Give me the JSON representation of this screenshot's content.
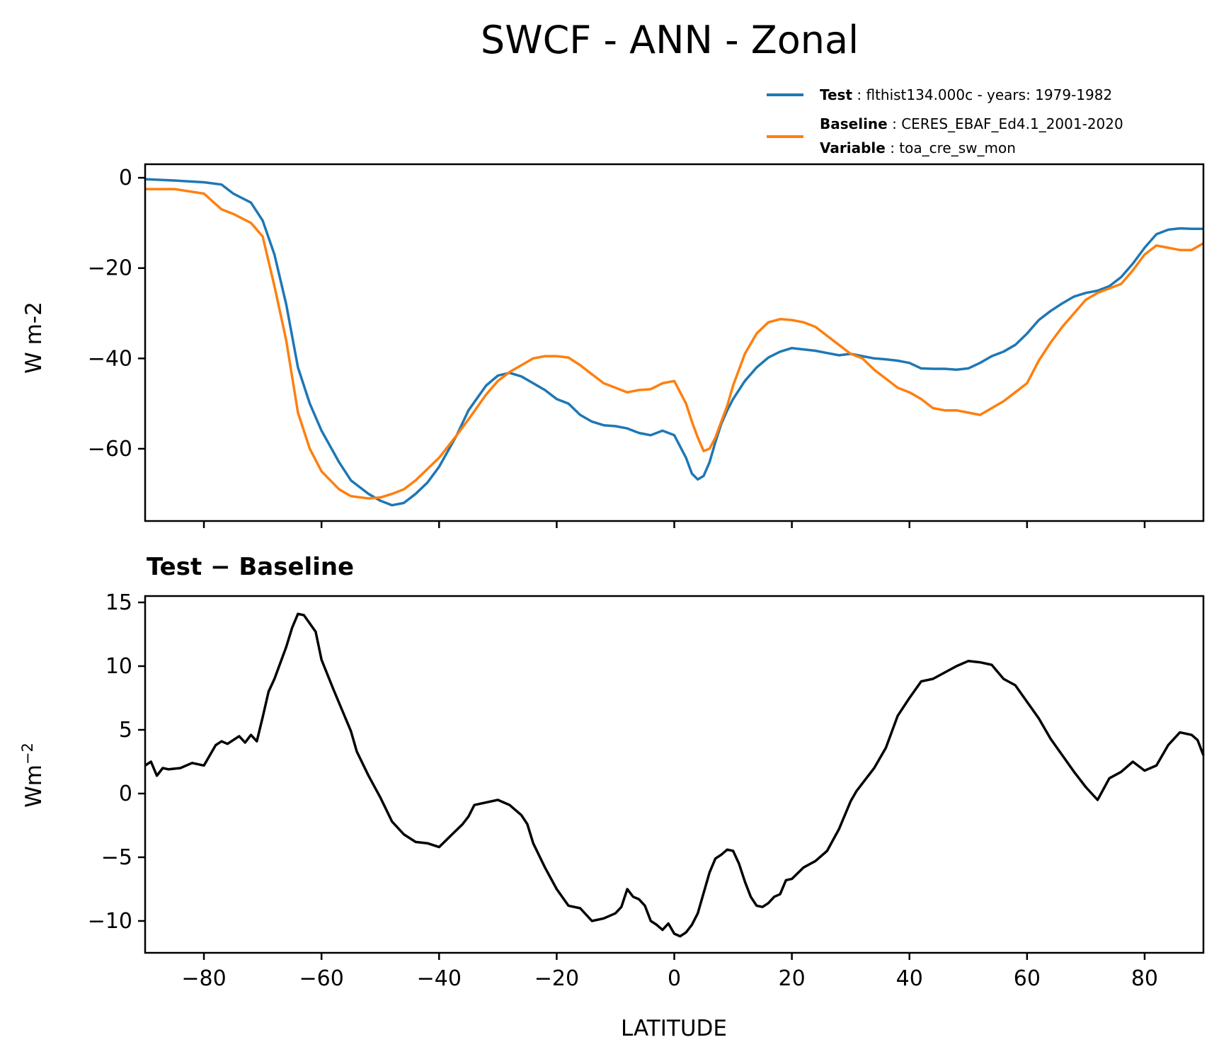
{
  "chart_data": {
    "title": "SWCF - ANN - Zonal",
    "xlabel": "LATITUDE",
    "xlim": [
      -90,
      90
    ],
    "xticks": [
      -80,
      -60,
      -40,
      -20,
      0,
      20,
      40,
      60,
      80
    ],
    "xtick_labels": [
      "−80",
      "−60",
      "−40",
      "−20",
      "0",
      "20",
      "40",
      "60",
      "80"
    ],
    "legend": {
      "placement": "top-right",
      "entries": [
        {
          "series": "test",
          "key": "Test",
          "text": "flthist134.000c - years: 1979-1982",
          "color": "#1f77b4"
        },
        {
          "series": "baseline",
          "key": "Baseline",
          "text": "CERES_EBAF_Ed4.1_2001-2020",
          "extra_key": "Variable",
          "extra_text": "toa_cre_sw_mon",
          "color": "#ff7f0e"
        }
      ]
    },
    "top": {
      "type": "line",
      "ylabel": "W m-2",
      "ylim": [
        -76,
        3
      ],
      "yticks": [
        0,
        -20,
        -40,
        -60
      ],
      "ytick_labels": [
        "0",
        "−20",
        "−40",
        "−60"
      ],
      "x": [
        -90,
        -85,
        -80,
        -77,
        -75,
        -72,
        -70,
        -68,
        -66,
        -64,
        -62,
        -60,
        -57,
        -55,
        -52,
        -50,
        -48,
        -46,
        -44,
        -42,
        -40,
        -37,
        -35,
        -32,
        -30,
        -28,
        -26,
        -24,
        -22,
        -20,
        -18,
        -16,
        -14,
        -12,
        -10,
        -8,
        -6,
        -4,
        -2,
        0,
        2,
        3,
        4,
        5,
        6,
        7,
        8,
        9,
        10,
        12,
        14,
        16,
        18,
        20,
        22,
        24,
        26,
        28,
        30,
        32,
        34,
        36,
        38,
        40,
        42,
        44,
        46,
        48,
        50,
        52,
        54,
        56,
        58,
        60,
        62,
        64,
        66,
        68,
        70,
        72,
        74,
        76,
        78,
        80,
        82,
        84,
        86,
        88,
        90
      ],
      "series": [
        {
          "name": "Test",
          "color": "#1f77b4",
          "values": [
            -0.3,
            -0.6,
            -1.0,
            -1.5,
            -3.5,
            -5.5,
            -9.5,
            -17.0,
            -28.0,
            -42.0,
            -50.0,
            -56.0,
            -63.0,
            -67.0,
            -70.0,
            -71.5,
            -72.5,
            -72.0,
            -70.0,
            -67.5,
            -64.0,
            -57.0,
            -51.5,
            -46.0,
            -43.8,
            -43.2,
            -44.0,
            -45.5,
            -47.0,
            -49.0,
            -50.0,
            -52.5,
            -54.0,
            -54.8,
            -55.0,
            -55.5,
            -56.5,
            -57.0,
            -56.0,
            -57.0,
            -62.0,
            -65.5,
            -66.8,
            -66.0,
            -63.0,
            -58.5,
            -54.5,
            -51.5,
            -49.0,
            -45.0,
            -42.0,
            -39.8,
            -38.5,
            -37.7,
            -38.0,
            -38.3,
            -38.8,
            -39.3,
            -39.0,
            -39.5,
            -40.0,
            -40.2,
            -40.5,
            -41.0,
            -42.2,
            -42.3,
            -42.3,
            -42.5,
            -42.2,
            -41.0,
            -39.5,
            -38.5,
            -37.0,
            -34.5,
            -31.5,
            -29.5,
            -27.8,
            -26.3,
            -25.5,
            -25.0,
            -24.0,
            -22.0,
            -19.0,
            -15.5,
            -12.5,
            -11.5,
            -11.2,
            -11.3,
            -11.3
          ]
        },
        {
          "name": "Baseline",
          "color": "#ff7f0e",
          "values": [
            -2.5,
            -2.5,
            -3.5,
            -7.0,
            -8.0,
            -10.0,
            -13.0,
            -24.0,
            -36.0,
            -52.0,
            -60.0,
            -65.0,
            -69.0,
            -70.5,
            -71.0,
            -70.8,
            -70.0,
            -69.0,
            -67.0,
            -64.5,
            -62.0,
            -57.0,
            -53.5,
            -48.0,
            -45.0,
            -43.0,
            -41.5,
            -40.0,
            -39.5,
            -39.5,
            -39.8,
            -41.5,
            -43.5,
            -45.5,
            -46.5,
            -47.5,
            -47.0,
            -46.8,
            -45.5,
            -45.0,
            -50.0,
            -54.0,
            -57.5,
            -60.5,
            -60.0,
            -57.5,
            -54.0,
            -50.5,
            -46.0,
            -39.0,
            -34.5,
            -32.0,
            -31.3,
            -31.5,
            -32.0,
            -33.0,
            -35.0,
            -37.0,
            -39.0,
            -40.0,
            -42.5,
            -44.5,
            -46.5,
            -47.5,
            -49.0,
            -51.0,
            -51.5,
            -51.5,
            -52.0,
            -52.5,
            -51.0,
            -49.5,
            -47.5,
            -45.5,
            -40.5,
            -36.5,
            -33.0,
            -30.0,
            -27.0,
            -25.5,
            -24.5,
            -23.5,
            -20.5,
            -17.0,
            -15.0,
            -15.5,
            -16.0,
            -16.0,
            -14.5
          ]
        }
      ]
    },
    "bottom": {
      "type": "line",
      "title": "Test − Baseline",
      "ylabel": "Wm",
      "ylabel_exp": "−2",
      "ylim": [
        -12.5,
        15.5
      ],
      "yticks": [
        15,
        10,
        5,
        0,
        -5,
        -10
      ],
      "ytick_labels": [
        "15",
        "10",
        "5",
        "0",
        "−5",
        "−10"
      ],
      "x": [
        -90,
        -89,
        -88,
        -87,
        -86,
        -84,
        -82,
        -80,
        -78,
        -77,
        -76,
        -74,
        -73,
        -72,
        -71,
        -70,
        -69,
        -68,
        -66,
        -65,
        -64,
        -63,
        -61,
        -60,
        -58,
        -56,
        -55,
        -54,
        -52,
        -50,
        -48,
        -46,
        -44,
        -42,
        -40,
        -38,
        -36,
        -35,
        -34,
        -32,
        -30,
        -29,
        -28,
        -26,
        -25,
        -24,
        -22,
        -20,
        -18,
        -16,
        -15,
        -14,
        -12,
        -11,
        -10,
        -9,
        -8,
        -7,
        -6,
        -5,
        -4,
        -3,
        -2,
        -1,
        0,
        1,
        2,
        3,
        4,
        5,
        6,
        7,
        8,
        9,
        10,
        11,
        12,
        13,
        14,
        15,
        16,
        17,
        18,
        19,
        20,
        22,
        24,
        26,
        28,
        30,
        31,
        32,
        34,
        36,
        38,
        40,
        42,
        44,
        46,
        48,
        50,
        52,
        54,
        56,
        58,
        60,
        62,
        64,
        66,
        68,
        70,
        72,
        74,
        76,
        78,
        80,
        82,
        84,
        86,
        88,
        89,
        90
      ],
      "series": [
        {
          "name": "Test − Baseline",
          "color": "#000000",
          "values": [
            2.2,
            2.5,
            1.4,
            2.0,
            1.9,
            2.0,
            2.4,
            2.2,
            3.8,
            4.1,
            3.9,
            4.5,
            4.0,
            4.6,
            4.1,
            6.0,
            8.0,
            9.0,
            11.5,
            13.0,
            14.1,
            14.0,
            12.7,
            10.5,
            8.2,
            6.0,
            4.9,
            3.3,
            1.4,
            -0.3,
            -2.2,
            -3.2,
            -3.8,
            -3.9,
            -4.2,
            -3.3,
            -2.4,
            -1.8,
            -0.9,
            -0.7,
            -0.5,
            -0.7,
            -0.9,
            -1.7,
            -2.4,
            -3.9,
            -5.8,
            -7.5,
            -8.8,
            -9.0,
            -9.5,
            -10.0,
            -9.8,
            -9.6,
            -9.4,
            -8.9,
            -7.5,
            -8.1,
            -8.3,
            -8.8,
            -10.0,
            -10.3,
            -10.7,
            -10.2,
            -11.0,
            -11.2,
            -10.9,
            -10.3,
            -9.4,
            -7.8,
            -6.2,
            -5.1,
            -4.8,
            -4.4,
            -4.5,
            -5.5,
            -6.9,
            -8.1,
            -8.8,
            -8.9,
            -8.6,
            -8.1,
            -7.9,
            -6.8,
            -6.7,
            -5.8,
            -5.3,
            -4.5,
            -2.8,
            -0.6,
            0.2,
            0.8,
            2.0,
            3.6,
            6.1,
            7.5,
            8.8,
            9.0,
            9.5,
            10.0,
            10.4,
            10.3,
            10.1,
            9.0,
            8.5,
            7.2,
            5.9,
            4.3,
            3.0,
            1.7,
            0.5,
            -0.5,
            1.2,
            1.7,
            2.5,
            1.8,
            2.2,
            3.8,
            4.8,
            4.6,
            4.2,
            3.0
          ]
        }
      ]
    }
  }
}
